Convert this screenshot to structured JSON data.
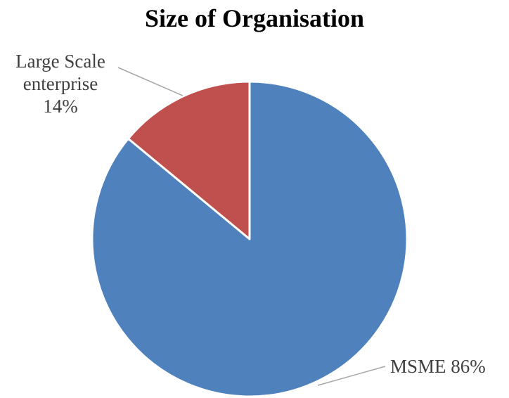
{
  "chart_data": {
    "type": "pie",
    "title": "Size of Organisation",
    "slices": [
      {
        "label_lines": [
          "Large Scale",
          "enterprise",
          "14%"
        ],
        "value": 14,
        "color": "#C0504D"
      },
      {
        "label_lines": [
          "MSME 86%"
        ],
        "value": 86,
        "color": "#4F81BD"
      }
    ],
    "legend": "none",
    "data_labels": "outside-with-leader-lines"
  }
}
